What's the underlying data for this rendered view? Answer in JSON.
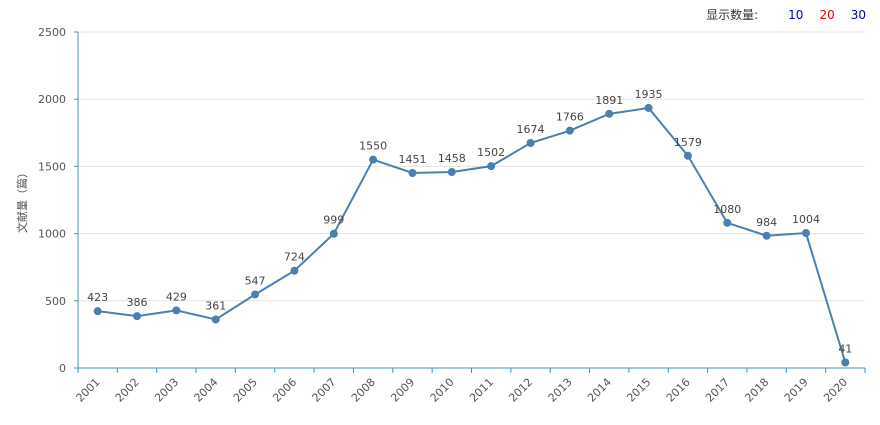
{
  "display_count": {
    "label": "显示数量:",
    "options": [
      {
        "label": "10",
        "color": "#0000cc"
      },
      {
        "label": "20",
        "color": "#dd0000"
      },
      {
        "label": "30",
        "color": "#000099"
      }
    ]
  },
  "chart_data": {
    "type": "line",
    "title": "",
    "xlabel": "",
    "ylabel": "文献量（篇）",
    "categories": [
      "2001",
      "2002",
      "2003",
      "2004",
      "2005",
      "2006",
      "2007",
      "2008",
      "2009",
      "2010",
      "2011",
      "2012",
      "2013",
      "2014",
      "2015",
      "2016",
      "2017",
      "2018",
      "2019",
      "2020"
    ],
    "series": [
      {
        "name": "文献量",
        "values": [
          423,
          386,
          429,
          361,
          547,
          724,
          999,
          1550,
          1451,
          1458,
          1502,
          1674,
          1766,
          1891,
          1935,
          1579,
          1080,
          984,
          1004,
          41
        ]
      }
    ],
    "ylim": [
      0,
      2500
    ],
    "yticks": [
      0,
      500,
      1000,
      1500,
      2000,
      2500
    ],
    "grid": true,
    "colors": {
      "line": "#4a7fb0",
      "axis": "#4a90c0",
      "grid": "#e2e2e2"
    }
  }
}
